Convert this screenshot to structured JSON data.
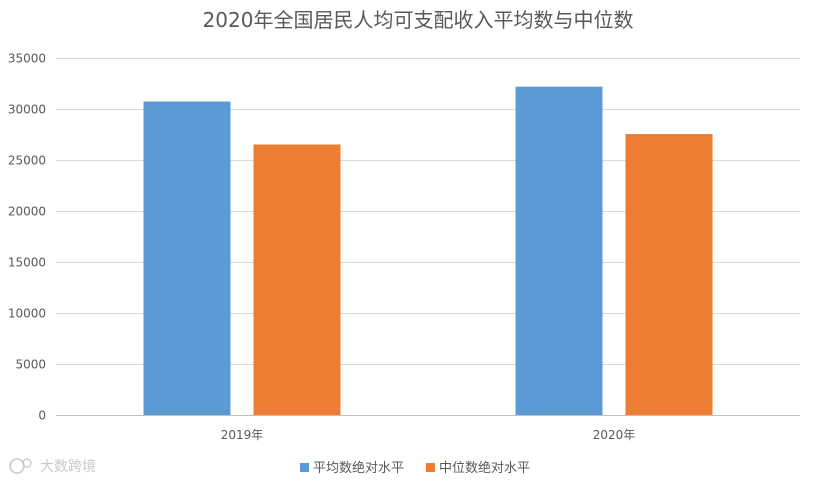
{
  "chart_data": {
    "type": "bar",
    "title": "2020年全国居民人均可支配收入平均数与中位数",
    "categories": [
      "2019年",
      "2020年"
    ],
    "series": [
      {
        "name": "平均数绝对水平",
        "values": [
          30733,
          32189
        ],
        "color": "#5b9bd5"
      },
      {
        "name": "中位数绝对水平",
        "values": [
          26523,
          27540
        ],
        "color": "#ed7d31"
      }
    ],
    "xlabel": "",
    "ylabel": "",
    "ylim": [
      0,
      35000
    ],
    "yticks": [
      0,
      5000,
      10000,
      15000,
      20000,
      25000,
      30000,
      35000
    ],
    "grid": true,
    "legend_position": "bottom"
  },
  "watermark": {
    "text": "大数跨境",
    "icon": "dashuju-logo-icon"
  }
}
